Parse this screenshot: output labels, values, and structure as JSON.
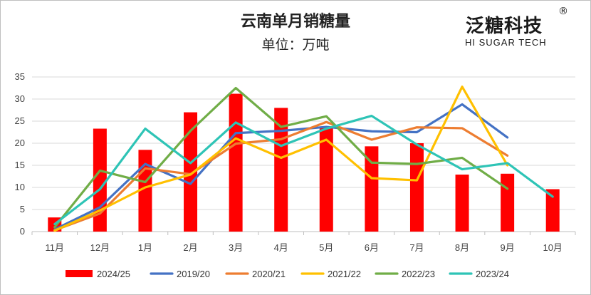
{
  "header": {
    "title": "云南单月销糖量",
    "subtitle": "单位：万吨"
  },
  "logo": {
    "main_text": "泛糖科技",
    "registered_mark": "®",
    "sub_text": "HI SUGAR TECH"
  },
  "chart_data": {
    "type": "bar",
    "title": "云南单月销糖量",
    "subtitle": "单位：万吨",
    "xlabel": "",
    "ylabel": "",
    "categories": [
      "11月",
      "12月",
      "1月",
      "2月",
      "3月",
      "4月",
      "5月",
      "6月",
      "7月",
      "8月",
      "9月",
      "10月"
    ],
    "ylim": [
      0,
      35
    ],
    "yticks": [
      0,
      5,
      10,
      15,
      20,
      25,
      30,
      35
    ],
    "grid": true,
    "legend_position": "bottom",
    "series": [
      {
        "name": "2024/25",
        "kind": "bar",
        "color": "#ff0000",
        "values": [
          3.2,
          23.3,
          18.5,
          27.0,
          31.2,
          28.0,
          23.5,
          19.3,
          20.0,
          12.9,
          13.1,
          9.6
        ]
      },
      {
        "name": "2019/20",
        "kind": "line",
        "color": "#4472c4",
        "values": [
          0.5,
          5.5,
          15.3,
          10.8,
          22.3,
          22.8,
          23.7,
          22.7,
          22.5,
          28.8,
          21.3,
          null
        ]
      },
      {
        "name": "2020/21",
        "kind": "line",
        "color": "#ed7d31",
        "values": [
          0.3,
          4.1,
          14.3,
          13.0,
          19.9,
          20.9,
          24.8,
          20.8,
          23.6,
          23.4,
          17.2,
          null
        ]
      },
      {
        "name": "2021/22",
        "kind": "line",
        "color": "#ffc000",
        "values": [
          0.2,
          4.8,
          10.0,
          12.9,
          21.1,
          16.7,
          20.8,
          12.1,
          11.6,
          32.8,
          15.0,
          null
        ]
      },
      {
        "name": "2022/23",
        "kind": "line",
        "color": "#70ad47",
        "values": [
          1.0,
          13.8,
          11.2,
          22.8,
          32.5,
          23.7,
          26.1,
          15.6,
          15.3,
          16.7,
          9.7,
          null
        ]
      },
      {
        "name": "2023/24",
        "kind": "line",
        "color": "#2ec4b6",
        "values": [
          1.7,
          9.6,
          23.3,
          15.5,
          24.7,
          19.4,
          23.3,
          26.2,
          19.7,
          14.1,
          15.5,
          7.9
        ]
      }
    ]
  }
}
